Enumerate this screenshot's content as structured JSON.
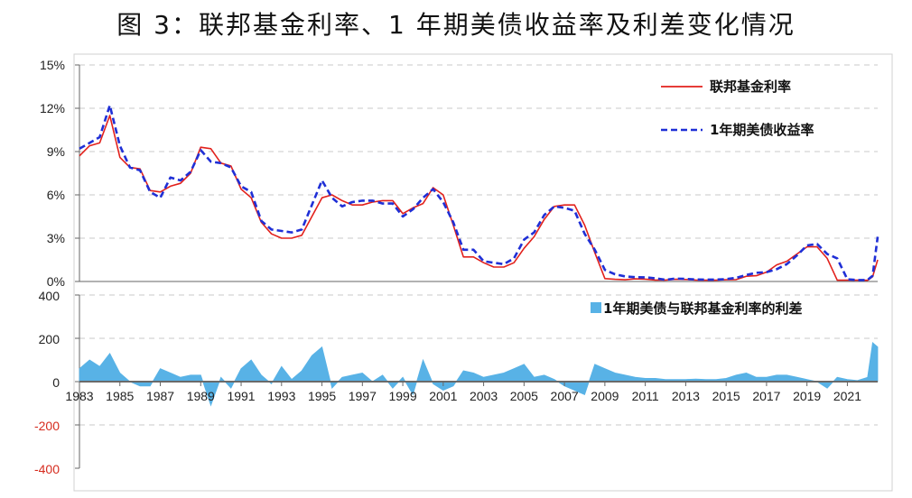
{
  "title": "图 3：联邦基金利率、1 年期美债收益率及利差变化情况",
  "colors": {
    "fed": "#e2211c",
    "treasury": "#1f2fd6",
    "spread": "#58b2e6",
    "negative_tick": "#d62c1f",
    "grid": "#c8c8c8"
  },
  "chart_data": [
    {
      "type": "line",
      "title": "",
      "xlabel": "",
      "ylabel": "",
      "xlim": [
        1983,
        2022.5
      ],
      "ylim": [
        0,
        15
      ],
      "yticks": [
        "0%",
        "3%",
        "6%",
        "9%",
        "12%",
        "15%"
      ],
      "grid": true,
      "legend_position": "top-right",
      "x": [
        1983.0,
        1983.5,
        1984.0,
        1984.5,
        1985.0,
        1985.5,
        1986.0,
        1986.5,
        1987.0,
        1987.5,
        1988.0,
        1988.5,
        1989.0,
        1989.5,
        1990.0,
        1990.5,
        1991.0,
        1991.5,
        1992.0,
        1992.5,
        1993.0,
        1993.5,
        1994.0,
        1994.5,
        1995.0,
        1995.5,
        1996.0,
        1996.5,
        1997.0,
        1997.5,
        1998.0,
        1998.5,
        1999.0,
        1999.5,
        2000.0,
        2000.5,
        2001.0,
        2001.5,
        2002.0,
        2002.5,
        2003.0,
        2003.5,
        2004.0,
        2004.5,
        2005.0,
        2005.5,
        2006.0,
        2006.5,
        2007.0,
        2007.5,
        2008.0,
        2008.5,
        2009.0,
        2009.5,
        2010.0,
        2010.5,
        2011.0,
        2011.5,
        2012.0,
        2012.5,
        2013.0,
        2013.5,
        2014.0,
        2014.5,
        2015.0,
        2015.5,
        2016.0,
        2016.5,
        2017.0,
        2017.5,
        2018.0,
        2018.5,
        2019.0,
        2019.5,
        2020.0,
        2020.5,
        2021.0,
        2021.5,
        2022.0,
        2022.25,
        2022.5
      ],
      "series": [
        {
          "name": "联邦基金利率",
          "style": "solid",
          "values": [
            8.7,
            9.4,
            9.6,
            11.5,
            8.6,
            7.9,
            7.8,
            6.3,
            6.2,
            6.6,
            6.8,
            7.5,
            9.3,
            9.2,
            8.2,
            8.0,
            6.4,
            5.8,
            4.1,
            3.3,
            3.0,
            3.0,
            3.2,
            4.5,
            5.8,
            6.0,
            5.6,
            5.3,
            5.3,
            5.5,
            5.6,
            5.6,
            4.7,
            5.1,
            5.4,
            6.5,
            6.0,
            3.9,
            1.7,
            1.7,
            1.3,
            1.0,
            1.0,
            1.3,
            2.3,
            3.1,
            4.3,
            5.2,
            5.3,
            5.3,
            3.9,
            2.0,
            0.2,
            0.15,
            0.12,
            0.18,
            0.16,
            0.1,
            0.1,
            0.15,
            0.14,
            0.1,
            0.09,
            0.09,
            0.12,
            0.13,
            0.36,
            0.4,
            0.65,
            1.15,
            1.4,
            1.9,
            2.4,
            2.4,
            1.6,
            0.09,
            0.09,
            0.09,
            0.08,
            0.33,
            1.5
          ]
        },
        {
          "name": "1年期美债收益率",
          "style": "dashed",
          "values": [
            9.2,
            9.6,
            10.0,
            12.2,
            9.4,
            7.9,
            7.7,
            6.2,
            5.8,
            7.2,
            7.0,
            7.6,
            9.1,
            8.3,
            8.2,
            7.9,
            6.6,
            6.2,
            4.2,
            3.6,
            3.5,
            3.4,
            3.6,
            5.3,
            7.0,
            5.8,
            5.2,
            5.5,
            5.6,
            5.6,
            5.4,
            5.4,
            4.5,
            5.0,
            5.8,
            6.4,
            5.5,
            4.1,
            2.2,
            2.2,
            1.4,
            1.3,
            1.2,
            1.6,
            2.9,
            3.4,
            4.6,
            5.2,
            5.1,
            4.9,
            3.3,
            2.2,
            0.8,
            0.5,
            0.35,
            0.3,
            0.29,
            0.22,
            0.12,
            0.2,
            0.18,
            0.14,
            0.13,
            0.13,
            0.16,
            0.25,
            0.45,
            0.6,
            0.65,
            0.85,
            1.2,
            1.8,
            2.5,
            2.6,
            1.9,
            1.6,
            0.15,
            0.1,
            0.1,
            0.4,
            3.1
          ]
        }
      ]
    },
    {
      "type": "area",
      "title": "",
      "xlabel": "",
      "ylabel": "",
      "xlim": [
        1983,
        2022.5
      ],
      "ylim": [
        -400,
        400
      ],
      "yticks": [
        "400",
        "200",
        "0",
        "-200",
        "-400"
      ],
      "xticks": [
        "1983",
        "1985",
        "1987",
        "1989",
        "1991",
        "1993",
        "1995",
        "1997",
        "1999",
        "2001",
        "2003",
        "2005",
        "2007",
        "2009",
        "2011",
        "2013",
        "2015",
        "2017",
        "2019",
        "2021"
      ],
      "grid": true,
      "legend_position": "top-right",
      "x": [
        1983.0,
        1983.5,
        1984.0,
        1984.5,
        1985.0,
        1985.5,
        1986.0,
        1986.5,
        1987.0,
        1987.5,
        1988.0,
        1988.5,
        1989.0,
        1989.5,
        1990.0,
        1990.5,
        1991.0,
        1991.5,
        1992.0,
        1992.5,
        1993.0,
        1993.5,
        1994.0,
        1994.5,
        1995.0,
        1995.5,
        1996.0,
        1996.5,
        1997.0,
        1997.5,
        1998.0,
        1998.5,
        1999.0,
        1999.5,
        2000.0,
        2000.5,
        2001.0,
        2001.5,
        2002.0,
        2002.5,
        2003.0,
        2003.5,
        2004.0,
        2004.5,
        2005.0,
        2005.5,
        2006.0,
        2006.5,
        2007.0,
        2007.5,
        2008.0,
        2008.5,
        2009.0,
        2009.5,
        2010.0,
        2010.5,
        2011.0,
        2011.5,
        2012.0,
        2012.5,
        2013.0,
        2013.5,
        2014.0,
        2014.5,
        2015.0,
        2015.5,
        2016.0,
        2016.5,
        2017.0,
        2017.5,
        2018.0,
        2018.5,
        2019.0,
        2019.5,
        2020.0,
        2020.5,
        2021.0,
        2021.5,
        2022.0,
        2022.25,
        2022.5
      ],
      "series": [
        {
          "name": "1年期美债与联邦基金利率的利差",
          "values": [
            60,
            100,
            70,
            130,
            40,
            0,
            -20,
            -20,
            60,
            40,
            20,
            30,
            30,
            -110,
            20,
            -30,
            60,
            100,
            30,
            -10,
            70,
            10,
            50,
            120,
            160,
            -30,
            20,
            30,
            40,
            0,
            30,
            -30,
            20,
            -60,
            100,
            -10,
            -40,
            -20,
            50,
            40,
            20,
            30,
            40,
            60,
            80,
            20,
            30,
            10,
            -20,
            -40,
            -60,
            80,
            60,
            40,
            30,
            20,
            15,
            15,
            10,
            10,
            10,
            12,
            10,
            10,
            15,
            30,
            40,
            20,
            20,
            30,
            30,
            20,
            10,
            0,
            -30,
            20,
            10,
            5,
            20,
            180,
            160
          ]
        }
      ]
    }
  ]
}
